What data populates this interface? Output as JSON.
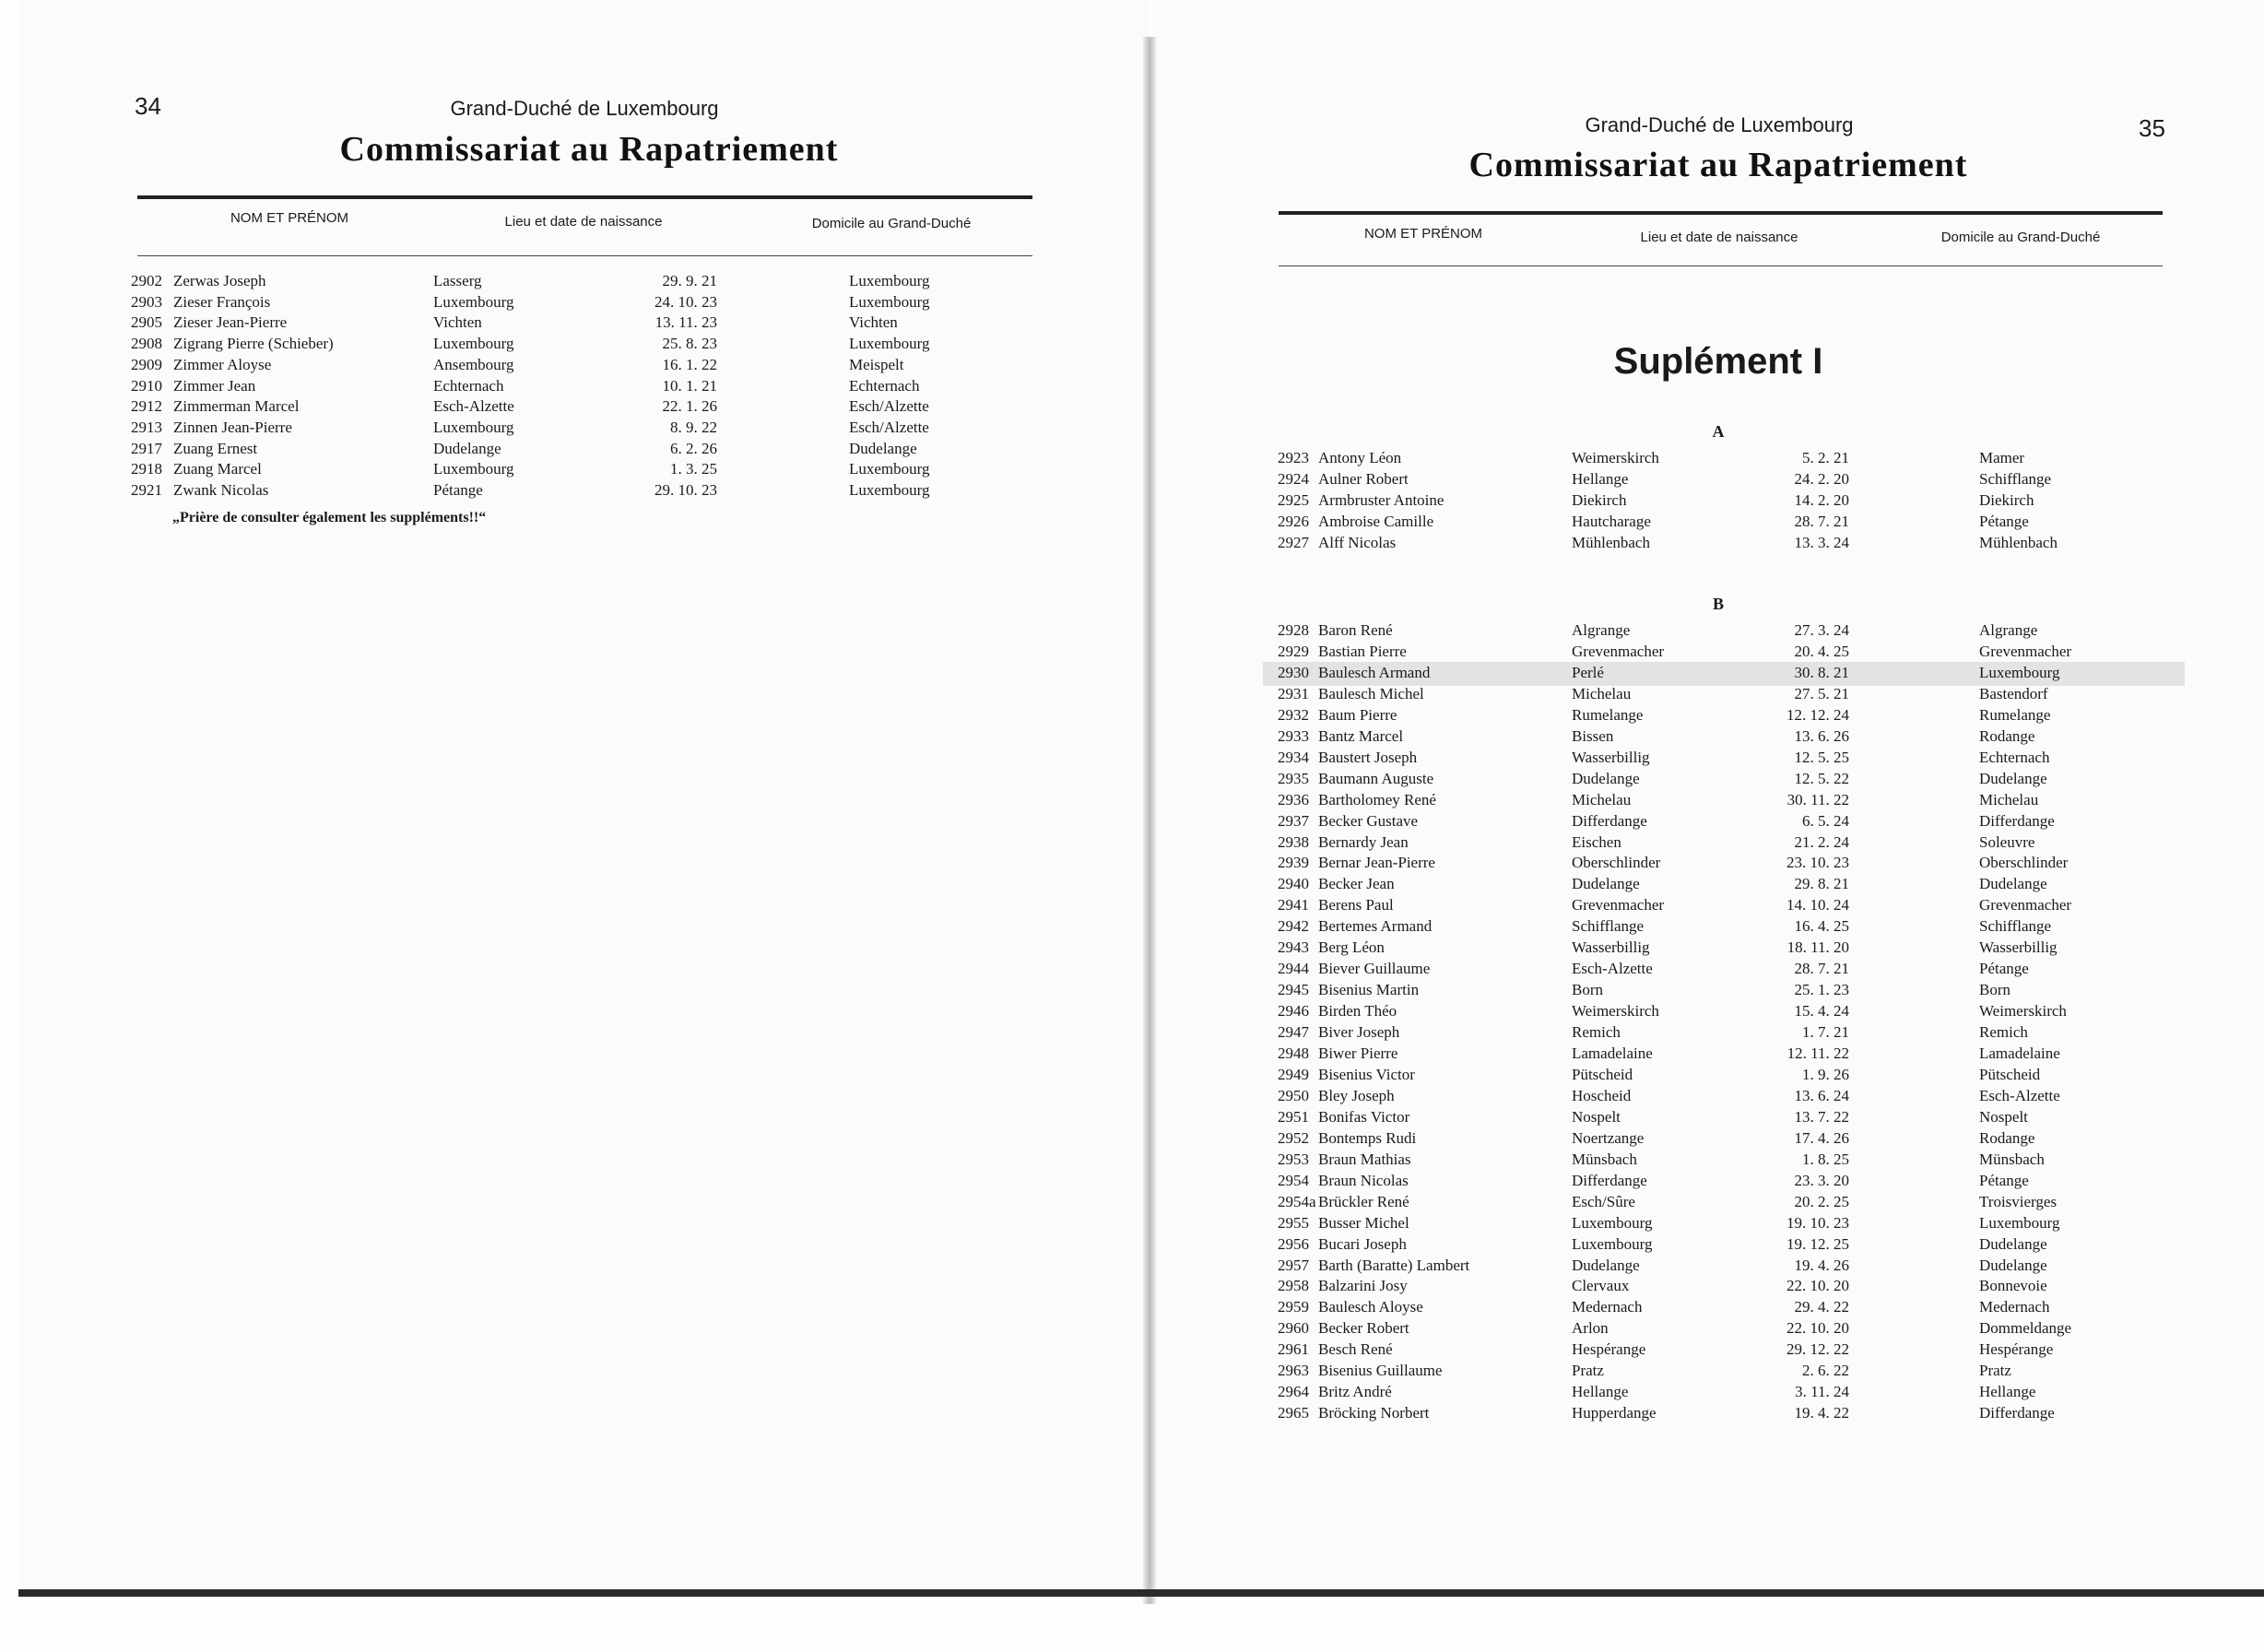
{
  "left_page": {
    "page_number": "34",
    "country": "Grand-Duché de Luxembourg",
    "title": "Commissariat au Rapatriement",
    "columns": [
      "NOM ET PRÉNOM",
      "Lieu et date de naissance",
      "Domicile au Grand-Duché"
    ],
    "rows": [
      [
        "2902",
        "Zerwas Joseph",
        "Lasserg",
        "29. 9. 21",
        "Luxembourg"
      ],
      [
        "2903",
        "Zieser François",
        "Luxembourg",
        "24. 10. 23",
        "Luxembourg"
      ],
      [
        "2905",
        "Zieser Jean-Pierre",
        "Vichten",
        "13. 11. 23",
        "Vichten"
      ],
      [
        "2908",
        "Zigrang Pierre (Schieber)",
        "Luxembourg",
        "25. 8. 23",
        "Luxembourg"
      ],
      [
        "2909",
        "Zimmer Aloyse",
        "Ansembourg",
        "16. 1. 22",
        "Meispelt"
      ],
      [
        "2910",
        "Zimmer Jean",
        "Echternach",
        "10. 1. 21",
        "Echternach"
      ],
      [
        "2912",
        "Zimmerman Marcel",
        "Esch-Alzette",
        "22. 1. 26",
        "Esch/Alzette"
      ],
      [
        "2913",
        "Zinnen Jean-Pierre",
        "Luxembourg",
        "8. 9. 22",
        "Esch/Alzette"
      ],
      [
        "2917",
        "Zuang Ernest",
        "Dudelange",
        "6. 2. 26",
        "Dudelange"
      ],
      [
        "2918",
        "Zuang Marcel",
        "Luxembourg",
        "1. 3. 25",
        "Luxembourg"
      ],
      [
        "2921",
        "Zwank Nicolas",
        "Pétange",
        "29. 10. 23",
        "Luxembourg"
      ]
    ],
    "note": "„Prière de consulter également les suppléments!!“"
  },
  "right_page": {
    "page_number": "35",
    "country": "Grand-Duché de Luxembourg",
    "title": "Commissariat au Rapatriement",
    "columns": [
      "NOM ET PRÉNOM",
      "Lieu et date de naissance",
      "Domicile au Grand-Duché"
    ],
    "supplement_title": "Suplément I",
    "section_a": {
      "letter": "A",
      "rows": [
        [
          "2923",
          "Antony Léon",
          "Weimerskirch",
          "5. 2. 21",
          "Mamer"
        ],
        [
          "2924",
          "Aulner Robert",
          "Hellange",
          "24. 2. 20",
          "Schifflange"
        ],
        [
          "2925",
          "Armbruster Antoine",
          "Diekirch",
          "14. 2. 20",
          "Diekirch"
        ],
        [
          "2926",
          "Ambroise Camille",
          "Hautcharage",
          "28. 7. 21",
          "Pétange"
        ],
        [
          "2927",
          "Alff Nicolas",
          "Mühlenbach",
          "13. 3. 24",
          "Mühlenbach"
        ]
      ]
    },
    "section_b": {
      "letter": "B",
      "rows": [
        [
          "2928",
          "Baron René",
          "Algrange",
          "27. 3. 24",
          "Algrange"
        ],
        [
          "2929",
          "Bastian Pierre",
          "Grevenmacher",
          "20. 4. 25",
          "Grevenmacher"
        ],
        [
          "2930",
          "Baulesch Armand",
          "Perlé",
          "30. 8. 21",
          "Luxembourg"
        ],
        [
          "2931",
          "Baulesch Michel",
          "Michelau",
          "27. 5. 21",
          "Bastendorf"
        ],
        [
          "2932",
          "Baum Pierre",
          "Rumelange",
          "12. 12. 24",
          "Rumelange"
        ],
        [
          "2933",
          "Bantz Marcel",
          "Bissen",
          "13. 6. 26",
          "Rodange"
        ],
        [
          "2934",
          "Baustert Joseph",
          "Wasserbillig",
          "12. 5. 25",
          "Echternach"
        ],
        [
          "2935",
          "Baumann Auguste",
          "Dudelange",
          "12. 5. 22",
          "Dudelange"
        ],
        [
          "2936",
          "Bartholomey René",
          "Michelau",
          "30. 11. 22",
          "Michelau"
        ],
        [
          "2937",
          "Becker Gustave",
          "Differdange",
          "6. 5. 24",
          "Differdange"
        ],
        [
          "2938",
          "Bernardy Jean",
          "Eischen",
          "21. 2. 24",
          "Soleuvre"
        ],
        [
          "2939",
          "Bernar Jean-Pierre",
          "Oberschlinder",
          "23. 10. 23",
          "Oberschlinder"
        ],
        [
          "2940",
          "Becker Jean",
          "Dudelange",
          "29. 8. 21",
          "Dudelange"
        ],
        [
          "2941",
          "Berens Paul",
          "Grevenmacher",
          "14. 10. 24",
          "Grevenmacher"
        ],
        [
          "2942",
          "Bertemes Armand",
          "Schifflange",
          "16. 4. 25",
          "Schifflange"
        ],
        [
          "2943",
          "Berg Léon",
          "Wasserbillig",
          "18. 11. 20",
          "Wasserbillig"
        ],
        [
          "2944",
          "Biever Guillaume",
          "Esch-Alzette",
          "28. 7. 21",
          "Pétange"
        ],
        [
          "2945",
          "Bisenius Martin",
          "Born",
          "25. 1. 23",
          "Born"
        ],
        [
          "2946",
          "Birden Théo",
          "Weimerskirch",
          "15. 4. 24",
          "Weimerskirch"
        ],
        [
          "2947",
          "Biver Joseph",
          "Remich",
          "1. 7. 21",
          "Remich"
        ],
        [
          "2948",
          "Biwer Pierre",
          "Lamadelaine",
          "12. 11. 22",
          "Lamadelaine"
        ],
        [
          "2949",
          "Bisenius Victor",
          "Pütscheid",
          "1. 9. 26",
          "Pütscheid"
        ],
        [
          "2950",
          "Bley Joseph",
          "Hoscheid",
          "13. 6. 24",
          "Esch-Alzette"
        ],
        [
          "2951",
          "Bonifas Victor",
          "Nospelt",
          "13. 7. 22",
          "Nospelt"
        ],
        [
          "2952",
          "Bontemps Rudi",
          "Noertzange",
          "17. 4. 26",
          "Rodange"
        ],
        [
          "2953",
          "Braun Mathias",
          "Münsbach",
          "1. 8. 25",
          "Münsbach"
        ],
        [
          "2954",
          "Braun Nicolas",
          "Differdange",
          "23. 3. 20",
          "Pétange"
        ],
        [
          "2954a",
          "Brückler René",
          "Esch/Sûre",
          "20. 2. 25",
          "Troisvierges"
        ],
        [
          "2955",
          "Busser Michel",
          "Luxembourg",
          "19. 10. 23",
          "Luxembourg"
        ],
        [
          "2956",
          "Bucari Joseph",
          "Luxembourg",
          "19. 12. 25",
          "Dudelange"
        ],
        [
          "2957",
          "Barth (Baratte) Lambert",
          "Dudelange",
          "19. 4. 26",
          "Dudelange"
        ],
        [
          "2958",
          "Balzarini Josy",
          "Clervaux",
          "22. 10. 20",
          "Bonnevoie"
        ],
        [
          "2959",
          "Baulesch Aloyse",
          "Medernach",
          "29. 4. 22",
          "Medernach"
        ],
        [
          "2960",
          "Becker Robert",
          "Arlon",
          "22. 10. 20",
          "Dommeldange"
        ],
        [
          "2961",
          "Besch René",
          "Hespérange",
          "29. 12. 22",
          "Hespérange"
        ],
        [
          "2963",
          "Bisenius Guillaume",
          "Pratz",
          "2. 6. 22",
          "Pratz"
        ],
        [
          "2964",
          "Britz André",
          "Hellange",
          "3. 11. 24",
          "Hellange"
        ],
        [
          "2965",
          "Bröcking Norbert",
          "Hupperdange",
          "19. 4. 22",
          "Differdange"
        ]
      ]
    }
  }
}
